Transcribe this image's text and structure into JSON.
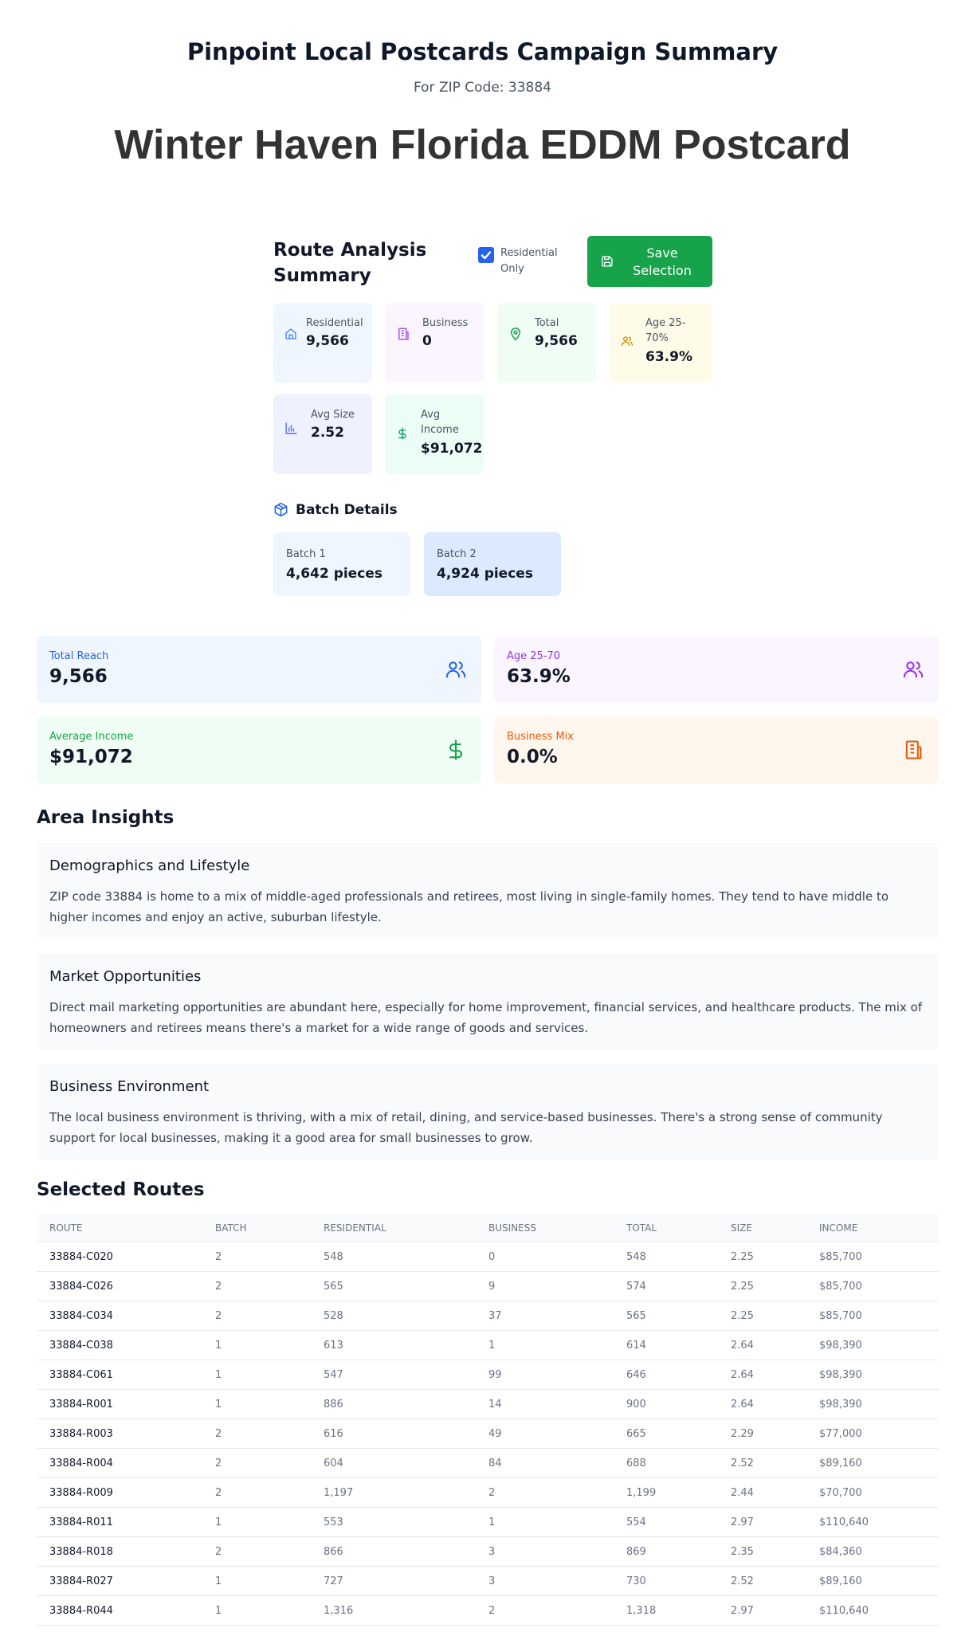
{
  "header": {
    "title": "Pinpoint Local Postcards Campaign Summary",
    "zip_line": "For ZIP Code: 33884",
    "big_title": "Winter Haven Florida EDDM Postcard"
  },
  "route_analysis": {
    "title": "Route Analysis Summary",
    "residential_only_label": "Residential Only",
    "residential_only_checked": true,
    "save_label": "Save Selection",
    "stats": {
      "residential": {
        "label": "Residential",
        "value": "9,566"
      },
      "business": {
        "label": "Business",
        "value": "0"
      },
      "total": {
        "label": "Total",
        "value": "9,566"
      },
      "age": {
        "label": "Age 25-70%",
        "value": "63.9%"
      },
      "avg_size": {
        "label": "Avg Size",
        "value": "2.52"
      },
      "avg_income": {
        "label": "Avg Income",
        "value": "$91,072"
      }
    },
    "batch_title": "Batch Details",
    "batches": [
      {
        "label": "Batch 1",
        "value": "4,642 pieces"
      },
      {
        "label": "Batch 2",
        "value": "4,924 pieces"
      }
    ]
  },
  "metrics": {
    "total_reach": {
      "label": "Total Reach",
      "value": "9,566"
    },
    "age": {
      "label": "Age 25-70",
      "value": "63.9%"
    },
    "avg_income": {
      "label": "Average Income",
      "value": "$91,072"
    },
    "business_mix": {
      "label": "Business Mix",
      "value": "0.0%"
    }
  },
  "insights": {
    "title": "Area Insights",
    "items": [
      {
        "title": "Demographics and Lifestyle",
        "text": "ZIP code 33884 is home to a mix of middle-aged professionals and retirees, most living in single-family homes. They tend to have middle to higher incomes and enjoy an active, suburban lifestyle."
      },
      {
        "title": "Market Opportunities",
        "text": "Direct mail marketing opportunities are abundant here, especially for home improvement, financial services, and healthcare products. The mix of homeowners and retirees means there's a market for a wide range of goods and services."
      },
      {
        "title": "Business Environment",
        "text": "The local business environment is thriving, with a mix of retail, dining, and service-based businesses. There's a strong sense of community support for local businesses, making it a good area for small businesses to grow."
      }
    ]
  },
  "routes": {
    "title": "Selected Routes",
    "columns": [
      "Route",
      "Batch",
      "Residential",
      "Business",
      "Total",
      "Size",
      "Income"
    ],
    "rows": [
      [
        "33884-C020",
        "2",
        "548",
        "0",
        "548",
        "2.25",
        "$85,700"
      ],
      [
        "33884-C026",
        "2",
        "565",
        "9",
        "574",
        "2.25",
        "$85,700"
      ],
      [
        "33884-C034",
        "2",
        "528",
        "37",
        "565",
        "2.25",
        "$85,700"
      ],
      [
        "33884-C038",
        "1",
        "613",
        "1",
        "614",
        "2.64",
        "$98,390"
      ],
      [
        "33884-C061",
        "1",
        "547",
        "99",
        "646",
        "2.64",
        "$98,390"
      ],
      [
        "33884-R001",
        "1",
        "886",
        "14",
        "900",
        "2.64",
        "$98,390"
      ],
      [
        "33884-R003",
        "2",
        "616",
        "49",
        "665",
        "2.29",
        "$77,000"
      ],
      [
        "33884-R004",
        "2",
        "604",
        "84",
        "688",
        "2.52",
        "$89,160"
      ],
      [
        "33884-R009",
        "2",
        "1,197",
        "2",
        "1,199",
        "2.44",
        "$70,700"
      ],
      [
        "33884-R011",
        "1",
        "553",
        "1",
        "554",
        "2.97",
        "$110,640"
      ],
      [
        "33884-R018",
        "2",
        "866",
        "3",
        "869",
        "2.35",
        "$84,360"
      ],
      [
        "33884-R027",
        "1",
        "727",
        "3",
        "730",
        "2.52",
        "$89,160"
      ],
      [
        "33884-R044",
        "1",
        "1,316",
        "2",
        "1,318",
        "2.97",
        "$110,640"
      ]
    ]
  }
}
